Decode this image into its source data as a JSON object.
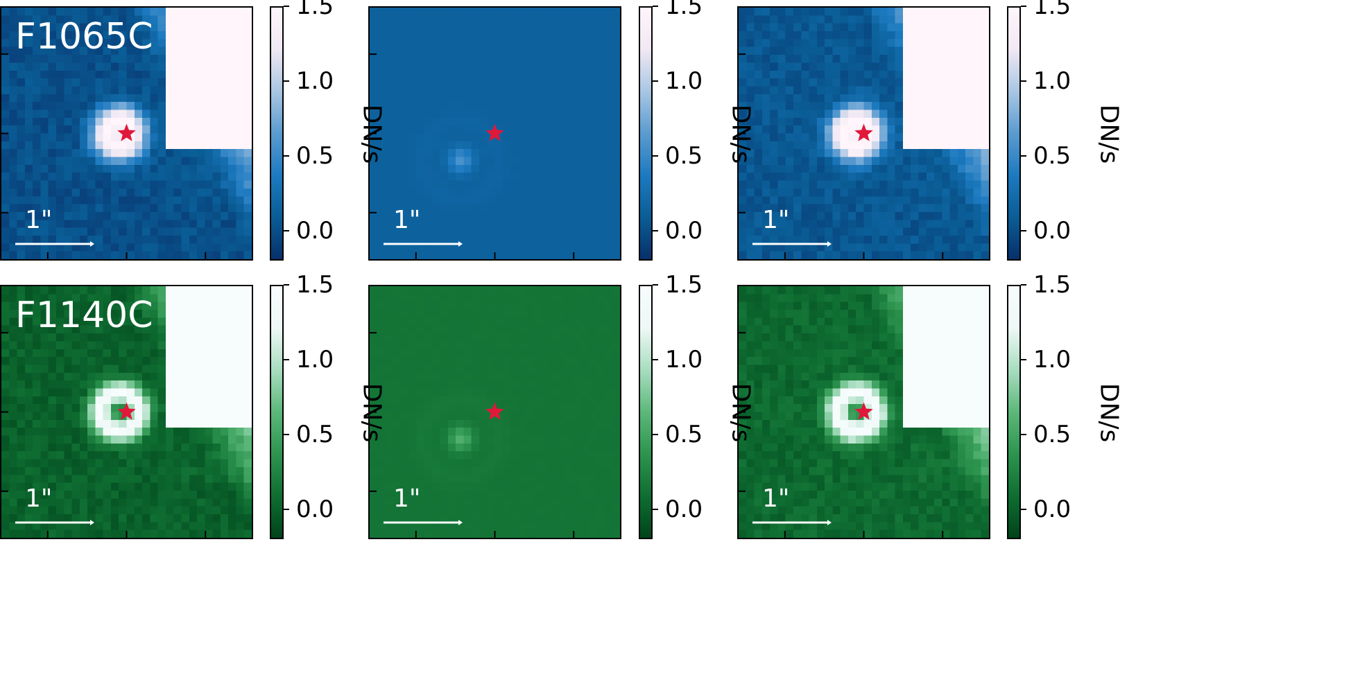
{
  "colors": {
    "blue_colormap": [
      "#08306b",
      "#0a5d96",
      "#1d7ac0",
      "#5a9bd0",
      "#a9c6e3",
      "#f0e8f3",
      "#fff5fb"
    ],
    "green_colormap": [
      "#00441b",
      "#0f6e32",
      "#2d944f",
      "#5cb87a",
      "#a8ddc0",
      "#eef8f6",
      "#f7fcfd"
    ],
    "star": "#e0183a",
    "annotation": "#ffffff"
  },
  "icons": {
    "source_marker": "star-marker",
    "scale_bar": "arrow-scale-bar"
  },
  "rows": [
    {
      "filter": "F1065C",
      "colormap": "blue_colormap",
      "panels": [
        {
          "name": "data",
          "label": "F1065C",
          "scale_bar_label": "1\""
        },
        {
          "name": "model",
          "label": "",
          "scale_bar_label": "1\""
        },
        {
          "name": "residual",
          "label": "",
          "scale_bar_label": "1\""
        }
      ],
      "colorbar": {
        "label": "DN/s",
        "ticks": [
          "1.5",
          "1.0",
          "0.5",
          "0.0"
        ]
      }
    },
    {
      "filter": "F1140C",
      "colormap": "green_colormap",
      "panels": [
        {
          "name": "data",
          "label": "F1140C",
          "scale_bar_label": "1\""
        },
        {
          "name": "model",
          "label": "",
          "scale_bar_label": "1\""
        },
        {
          "name": "residual",
          "label": "",
          "scale_bar_label": "1\""
        }
      ],
      "colorbar": {
        "label": "DN/s",
        "ticks": [
          "1.5",
          "1.0",
          "0.5",
          "0.0"
        ]
      }
    }
  ],
  "chart_data": [
    {
      "type": "heatmap",
      "filter": "F1065C",
      "panel": "data",
      "color_range": [
        -0.2,
        1.5
      ],
      "colorbar_label": "DN/s",
      "colorbar_ticks": [
        0.0,
        0.5,
        1.0,
        1.5
      ],
      "scale_bar": "1\"",
      "marker": "star"
    },
    {
      "type": "heatmap",
      "filter": "F1065C",
      "panel": "model",
      "color_range": [
        -0.2,
        1.5
      ],
      "colorbar_label": "DN/s",
      "colorbar_ticks": [
        0.0,
        0.5,
        1.0,
        1.5
      ],
      "scale_bar": "1\"",
      "marker": "star"
    },
    {
      "type": "heatmap",
      "filter": "F1065C",
      "panel": "residual",
      "color_range": [
        -0.2,
        1.5
      ],
      "colorbar_label": "DN/s",
      "colorbar_ticks": [
        0.0,
        0.5,
        1.0,
        1.5
      ],
      "scale_bar": "1\"",
      "marker": "star"
    },
    {
      "type": "heatmap",
      "filter": "F1140C",
      "panel": "data",
      "color_range": [
        -0.2,
        1.5
      ],
      "colorbar_label": "DN/s",
      "colorbar_ticks": [
        0.0,
        0.5,
        1.0,
        1.5
      ],
      "scale_bar": "1\"",
      "marker": "star"
    },
    {
      "type": "heatmap",
      "filter": "F1140C",
      "panel": "model",
      "color_range": [
        -0.2,
        1.5
      ],
      "colorbar_label": "DN/s",
      "colorbar_ticks": [
        0.0,
        0.5,
        1.0,
        1.5
      ],
      "scale_bar": "1\"",
      "marker": "star"
    },
    {
      "type": "heatmap",
      "filter": "F1140C",
      "panel": "residual",
      "color_range": [
        -0.2,
        1.5
      ],
      "colorbar_label": "DN/s",
      "colorbar_ticks": [
        0.0,
        0.5,
        1.0,
        1.5
      ],
      "scale_bar": "1\"",
      "marker": "star"
    }
  ]
}
